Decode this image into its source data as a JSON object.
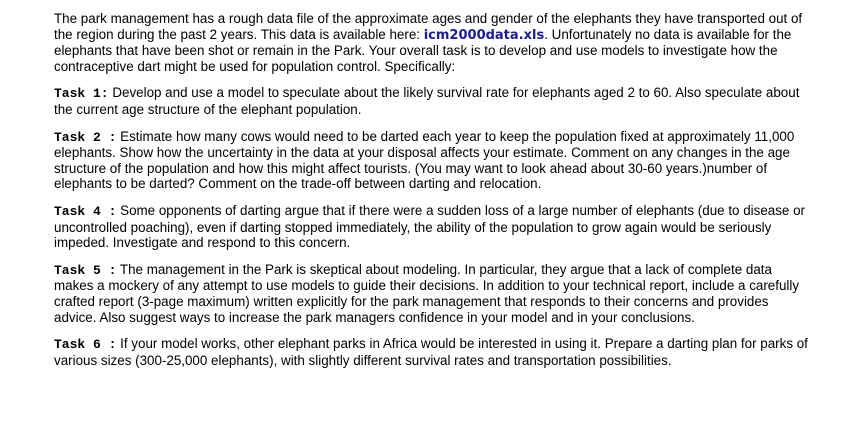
{
  "intro": {
    "text_before_link": "The park management has a rough data file of the approximate ages and gender of the elephants they have transported out of the region during the past 2 years. This data is available here: ",
    "link_text": "icm2000data.xls",
    "text_after_link": ". Unfortunately no data is available for the elephants that have been shot or remain in the Park. Your overall task is to develop and use models to investigate how the contraceptive dart might be used for population control. Specifically:",
    "link_color": "#1a1aa6"
  },
  "tasks": [
    {
      "label": "Task 1:",
      "text": " Develop and use a model to speculate about the likely survival rate for elephants aged 2 to 60. Also speculate about the current age structure of the elephant population."
    },
    {
      "label": "Task 2 :",
      "text": " Estimate how many cows would need to be darted each year to keep the population fixed at approximately 11,000 elephants. Show how the uncertainty in the data at your disposal affects your estimate. Comment on any changes in the age structure of the population and how this might affect tourists. (You may want to look ahead about 30-60 years.)number of elephants to be darted? Comment on the trade-off between darting and relocation."
    },
    {
      "label": "Task 4 :",
      "text": " Some opponents of darting argue that if there were a sudden loss of a large number of elephants (due to disease or uncontrolled poaching), even if darting stopped immediately, the ability of the population to grow again would be seriously impeded. Investigate and respond to this concern."
    },
    {
      "label": "Task 5 :",
      "text": " The management in the Park is skeptical about modeling. In particular, they argue that a lack of complete data makes a mockery of any attempt to use models to guide their decisions. In addition to your technical report, include a carefully crafted report (3-page maximum) written explicitly for the park management that responds to their concerns and provides advice. Also suggest ways to increase the park managers confidence in your model and in your conclusions."
    },
    {
      "label": "Task 6 :",
      "text": " If your model works, other elephant parks in Africa would be interested in using it. Prepare a darting plan for parks of various sizes (300-25,000 elephants), with slightly different survival rates and transportation possibilities."
    }
  ]
}
